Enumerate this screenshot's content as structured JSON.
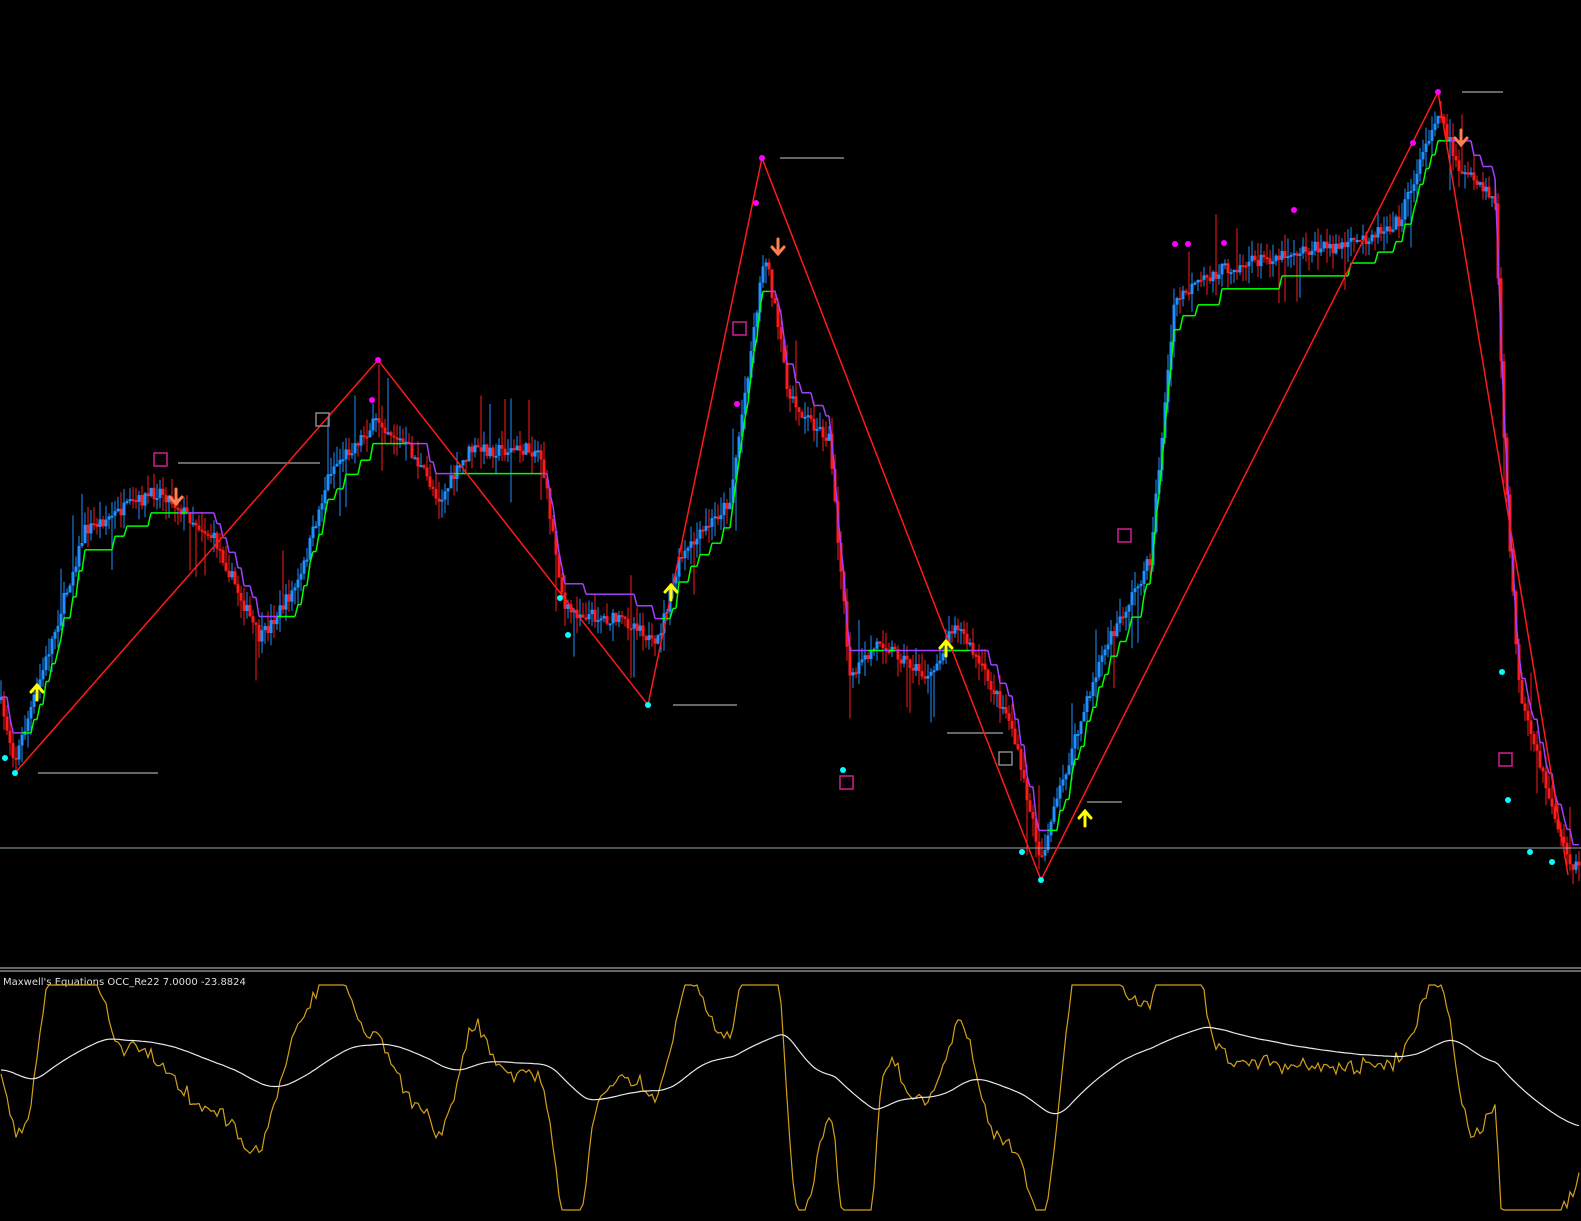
{
  "indicator": {
    "label": "Maxwell's Equations OCC_Re22 7.0000 -23.8824"
  }
}
